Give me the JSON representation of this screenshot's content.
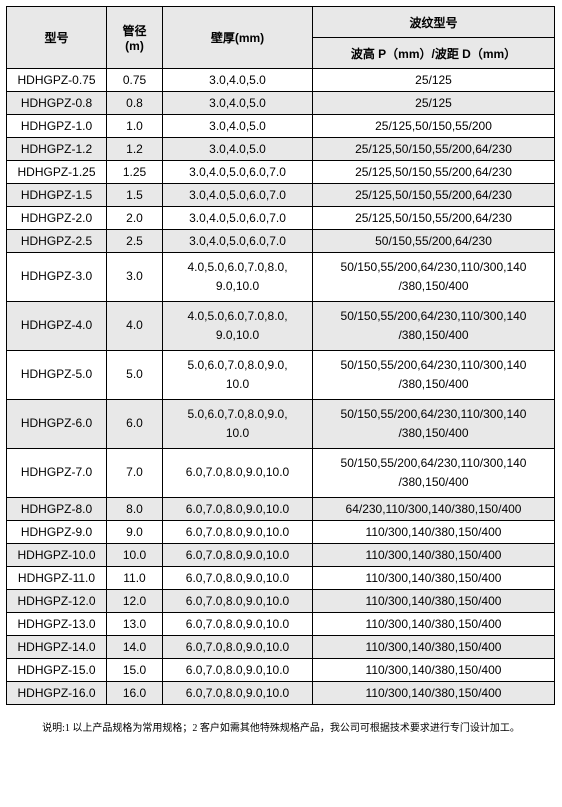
{
  "header": {
    "col1": "型号",
    "col2_line1": "管径",
    "col2_line2": "(m)",
    "col3": "壁厚(mm)",
    "col4_top": "波纹型号",
    "col4_bottom": "波高 P（mm）/波距 D（mm）"
  },
  "rows": [
    {
      "model": "HDHGPZ-0.75",
      "dia": "0.75",
      "wall": "3.0,4.0,5.0",
      "wave": "25/125",
      "stripe": false,
      "tall": false
    },
    {
      "model": "HDHGPZ-0.8",
      "dia": "0.8",
      "wall": "3.0,4.0,5.0",
      "wave": "25/125",
      "stripe": true,
      "tall": false
    },
    {
      "model": "HDHGPZ-1.0",
      "dia": "1.0",
      "wall": "3.0,4.0,5.0",
      "wave": "25/125,50/150,55/200",
      "stripe": false,
      "tall": false
    },
    {
      "model": "HDHGPZ-1.2",
      "dia": "1.2",
      "wall": "3.0,4.0,5.0",
      "wave": "25/125,50/150,55/200,64/230",
      "stripe": true,
      "tall": false
    },
    {
      "model": "HDHGPZ-1.25",
      "dia": "1.25",
      "wall": "3.0,4.0,5.0,6.0,7.0",
      "wave": "25/125,50/150,55/200,64/230",
      "stripe": false,
      "tall": false
    },
    {
      "model": "HDHGPZ-1.5",
      "dia": "1.5",
      "wall": "3.0,4.0,5.0,6.0,7.0",
      "wave": "25/125,50/150,55/200,64/230",
      "stripe": true,
      "tall": false
    },
    {
      "model": "HDHGPZ-2.0",
      "dia": "2.0",
      "wall": "3.0,4.0,5.0,6.0,7.0",
      "wave": "25/125,50/150,55/200,64/230",
      "stripe": false,
      "tall": false
    },
    {
      "model": "HDHGPZ-2.5",
      "dia": "2.5",
      "wall": "3.0,4.0,5.0,6.0,7.0",
      "wave": "50/150,55/200,64/230",
      "stripe": true,
      "tall": false
    },
    {
      "model": "HDHGPZ-3.0",
      "dia": "3.0",
      "wall": "4.0,5.0,6.0,7.0,8.0,\n9.0,10.0",
      "wave": "50/150,55/200,64/230,110/300,140\n/380,150/400",
      "stripe": false,
      "tall": true
    },
    {
      "model": "HDHGPZ-4.0",
      "dia": "4.0",
      "wall": "4.0,5.0,6.0,7.0,8.0,\n9.0,10.0",
      "wave": "50/150,55/200,64/230,110/300,140\n/380,150/400",
      "stripe": true,
      "tall": true
    },
    {
      "model": "HDHGPZ-5.0",
      "dia": "5.0",
      "wall": "5.0,6.0,7.0,8.0,9.0,\n10.0",
      "wave": "50/150,55/200,64/230,110/300,140\n/380,150/400",
      "stripe": false,
      "tall": true
    },
    {
      "model": "HDHGPZ-6.0",
      "dia": "6.0",
      "wall": "5.0,6.0,7.0,8.0,9.0,\n10.0",
      "wave": "50/150,55/200,64/230,110/300,140\n/380,150/400",
      "stripe": true,
      "tall": true
    },
    {
      "model": "HDHGPZ-7.0",
      "dia": "7.0",
      "wall": "6.0,7.0,8.0,9.0,10.0",
      "wave": "50/150,55/200,64/230,110/300,140\n/380,150/400",
      "stripe": false,
      "tall": true
    },
    {
      "model": "HDHGPZ-8.0",
      "dia": "8.0",
      "wall": "6.0,7.0,8.0,9.0,10.0",
      "wave": "64/230,110/300,140/380,150/400",
      "stripe": true,
      "tall": false
    },
    {
      "model": "HDHGPZ-9.0",
      "dia": "9.0",
      "wall": "6.0,7.0,8.0,9.0,10.0",
      "wave": "110/300,140/380,150/400",
      "stripe": false,
      "tall": false
    },
    {
      "model": "HDHGPZ-10.0",
      "dia": "10.0",
      "wall": "6.0,7.0,8.0,9.0,10.0",
      "wave": "110/300,140/380,150/400",
      "stripe": true,
      "tall": false
    },
    {
      "model": "HDHGPZ-11.0",
      "dia": "11.0",
      "wall": "6.0,7.0,8.0,9.0,10.0",
      "wave": "110/300,140/380,150/400",
      "stripe": false,
      "tall": false
    },
    {
      "model": "HDHGPZ-12.0",
      "dia": "12.0",
      "wall": "6.0,7.0,8.0,9.0,10.0",
      "wave": "110/300,140/380,150/400",
      "stripe": true,
      "tall": false
    },
    {
      "model": "HDHGPZ-13.0",
      "dia": "13.0",
      "wall": "6.0,7.0,8.0,9.0,10.0",
      "wave": "110/300,140/380,150/400",
      "stripe": false,
      "tall": false
    },
    {
      "model": "HDHGPZ-14.0",
      "dia": "14.0",
      "wall": "6.0,7.0,8.0,9.0,10.0",
      "wave": "110/300,140/380,150/400",
      "stripe": true,
      "tall": false
    },
    {
      "model": "HDHGPZ-15.0",
      "dia": "15.0",
      "wall": "6.0,7.0,8.0,9.0,10.0",
      "wave": "110/300,140/380,150/400",
      "stripe": false,
      "tall": false
    },
    {
      "model": "HDHGPZ-16.0",
      "dia": "16.0",
      "wall": "6.0,7.0,8.0,9.0,10.0",
      "wave": "110/300,140/380,150/400",
      "stripe": true,
      "tall": false
    }
  ],
  "footnote": "说明:1 以上产品规格为常用规格；2 客户如需其他特殊规格产品，我公司可根据技术要求进行专门设计加工。"
}
